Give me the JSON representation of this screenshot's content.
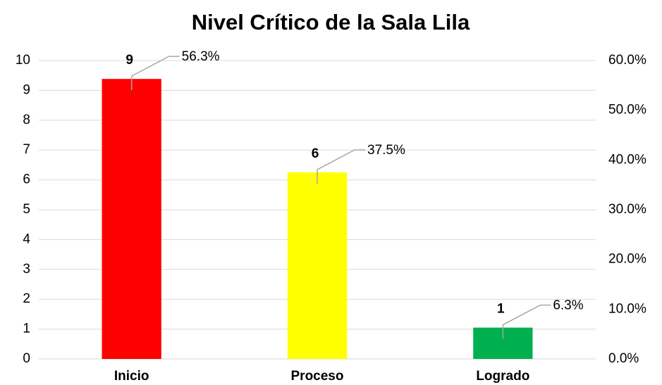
{
  "chart_data": {
    "type": "bar",
    "title": "Nivel Crítico de la Sala Lila",
    "categories": [
      "Inicio",
      "Proceso",
      "Logrado"
    ],
    "series": [
      {
        "values": [
          56.3,
          37.5,
          6.3
        ],
        "value_labels": [
          "56.3%",
          "37.5%",
          "6.3%"
        ],
        "axis": "y2",
        "colors": [
          "#ff0000",
          "#ffff00",
          "#00b050"
        ]
      },
      {
        "values": [
          9,
          6,
          1
        ],
        "axis": "y"
      }
    ],
    "ylim": [
      0,
      10
    ],
    "yticks": [
      0,
      1,
      2,
      3,
      4,
      5,
      6,
      7,
      8,
      9,
      10
    ],
    "y2lim": [
      0,
      60
    ],
    "y2ticks": [
      {
        "value": 0,
        "label": "0.0%"
      },
      {
        "value": 10,
        "label": "10.0%"
      },
      {
        "value": 20,
        "label": "20.0%"
      },
      {
        "value": 30,
        "label": "30.0%"
      },
      {
        "value": 40,
        "label": "40.0%"
      },
      {
        "value": 50,
        "label": "50.0%"
      },
      {
        "value": 60,
        "label": "60.0%"
      }
    ],
    "grid": true
  }
}
